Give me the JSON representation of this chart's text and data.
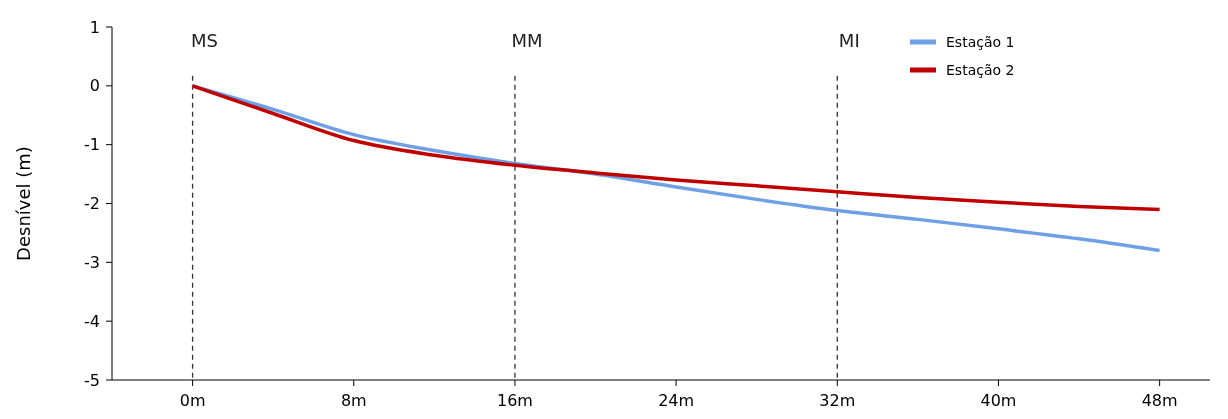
{
  "chart_data": {
    "type": "line",
    "ylabel": "Desnível (m)",
    "x": [
      0,
      4,
      8,
      12,
      16,
      20,
      24,
      28,
      32,
      36,
      40,
      44,
      48
    ],
    "series": [
      {
        "name": "Estação 1",
        "color": "#6fa0e6",
        "values": [
          0,
          -0.4,
          -0.83,
          -1.1,
          -1.32,
          -1.5,
          -1.72,
          -1.93,
          -2.12,
          -2.27,
          -2.43,
          -2.6,
          -2.8
        ]
      },
      {
        "name": "Estação 2",
        "color": "#c00000",
        "values": [
          0,
          -0.47,
          -0.93,
          -1.18,
          -1.35,
          -1.48,
          -1.6,
          -1.7,
          -1.8,
          -1.9,
          -1.98,
          -2.05,
          -2.1
        ]
      }
    ],
    "xlim": [
      -4,
      50.5
    ],
    "xticks": [
      {
        "value": 0,
        "label": "0m"
      },
      {
        "value": 8,
        "label": "8m"
      },
      {
        "value": 16,
        "label": "16m"
      },
      {
        "value": 24,
        "label": "24m"
      },
      {
        "value": 32,
        "label": "32m"
      },
      {
        "value": 40,
        "label": "40m"
      },
      {
        "value": 48,
        "label": "48m"
      }
    ],
    "ylim": [
      -5,
      1
    ],
    "yticks": [
      -5,
      -4,
      -3,
      -2,
      -1,
      0,
      1
    ],
    "ref_lines": [
      {
        "axis": "x",
        "value": 0,
        "label": "MS",
        "line_style": "dashed",
        "color": "#333333"
      },
      {
        "axis": "x",
        "value": 16,
        "label": "MM",
        "line_style": "dashed",
        "color": "#333333"
      },
      {
        "axis": "x",
        "value": 32,
        "label": "MI",
        "line_style": "dashed",
        "color": "#333333"
      }
    ],
    "grid": false,
    "legend": "top right",
    "marker": "none",
    "line_style": "solid"
  }
}
